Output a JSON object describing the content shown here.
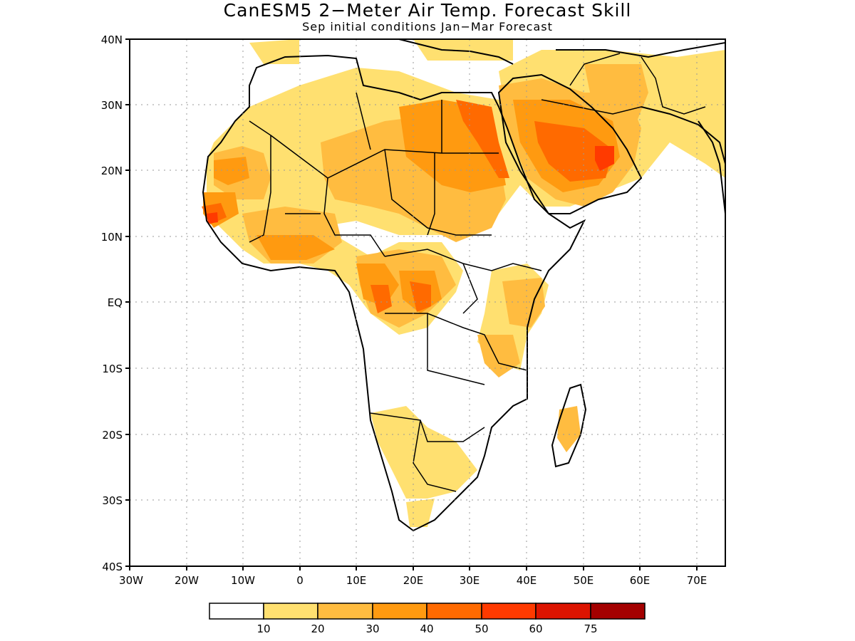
{
  "title": "CanESM5 2−Meter Air Temp. Forecast Skill",
  "subtitle": "Sep initial conditions  Jan−Mar Forecast",
  "map": {
    "lon_range": [
      -30,
      75
    ],
    "lat_range": [
      -40,
      40
    ],
    "lat_ticks": [
      "40N",
      "30N",
      "20N",
      "10N",
      "EQ",
      "10S",
      "20S",
      "30S",
      "40S"
    ],
    "lon_ticks": [
      "30W",
      "20W",
      "10W",
      "0",
      "10E",
      "20E",
      "30E",
      "40E",
      "50E",
      "60E",
      "70E"
    ],
    "gridlines": "dotted"
  },
  "legend": {
    "labels": [
      "10",
      "20",
      "30",
      "40",
      "50",
      "60",
      "75"
    ],
    "colors": [
      "#ffffff",
      "#ffe070",
      "#ffbc40",
      "#ff9a10",
      "#ff6a00",
      "#ff3a00",
      "#dc1400",
      "#a40000"
    ]
  }
}
